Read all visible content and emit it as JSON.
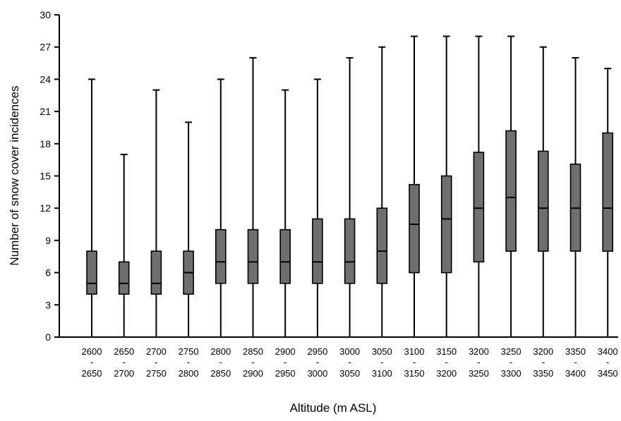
{
  "chart_data": {
    "type": "boxplot",
    "title": "",
    "xlabel": "Altitude (m ASL)",
    "ylabel": "Number of snow cover incidences",
    "ylim": [
      0,
      30
    ],
    "yticks": [
      "0",
      "3",
      "6",
      "9",
      "12",
      "15",
      "18",
      "21",
      "24",
      "27",
      "30"
    ],
    "grid": false,
    "categories": [
      {
        "top": "2600",
        "dash": "-",
        "bottom": "2650"
      },
      {
        "top": "2650",
        "dash": "-",
        "bottom": "2700"
      },
      {
        "top": "2700",
        "dash": "-",
        "bottom": "2750"
      },
      {
        "top": "2750",
        "dash": "-",
        "bottom": "2800"
      },
      {
        "top": "2800",
        "dash": "-",
        "bottom": "2850"
      },
      {
        "top": "2850",
        "dash": "-",
        "bottom": "2900"
      },
      {
        "top": "2900",
        "dash": "-",
        "bottom": "2950"
      },
      {
        "top": "2950",
        "dash": "-",
        "bottom": "3000"
      },
      {
        "top": "3000",
        "dash": "-",
        "bottom": "3050"
      },
      {
        "top": "3050",
        "dash": "-",
        "bottom": "3100"
      },
      {
        "top": "3100",
        "dash": "-",
        "bottom": "3150"
      },
      {
        "top": "3150",
        "dash": "-",
        "bottom": "3200"
      },
      {
        "top": "3200",
        "dash": "-",
        "bottom": "3250"
      },
      {
        "top": "3250",
        "dash": "-",
        "bottom": "3300"
      },
      {
        "top": "3200",
        "dash": "-",
        "bottom": "3350"
      },
      {
        "top": "3350",
        "dash": "-",
        "bottom": "3400"
      },
      {
        "top": "3400",
        "dash": "-",
        "bottom": "3450"
      }
    ],
    "boxes": [
      {
        "min": 0,
        "q1": 4,
        "median": 5,
        "q3": 8,
        "max": 24
      },
      {
        "min": 0,
        "q1": 4,
        "median": 5,
        "q3": 7,
        "max": 17
      },
      {
        "min": 0,
        "q1": 4,
        "median": 5,
        "q3": 8,
        "max": 23
      },
      {
        "min": 0,
        "q1": 4,
        "median": 6,
        "q3": 8,
        "max": 20
      },
      {
        "min": 0,
        "q1": 5,
        "median": 7,
        "q3": 10,
        "max": 24
      },
      {
        "min": 0,
        "q1": 5,
        "median": 7,
        "q3": 10,
        "max": 26
      },
      {
        "min": 0,
        "q1": 5,
        "median": 7,
        "q3": 10,
        "max": 23
      },
      {
        "min": 0,
        "q1": 5,
        "median": 7,
        "q3": 11,
        "max": 24
      },
      {
        "min": 0,
        "q1": 5,
        "median": 7,
        "q3": 11,
        "max": 26
      },
      {
        "min": 0,
        "q1": 5,
        "median": 8,
        "q3": 12,
        "max": 27
      },
      {
        "min": 0,
        "q1": 6,
        "median": 10.5,
        "q3": 14.2,
        "max": 28
      },
      {
        "min": 0,
        "q1": 6,
        "median": 11,
        "q3": 15,
        "max": 28
      },
      {
        "min": 0,
        "q1": 7,
        "median": 12,
        "q3": 17.2,
        "max": 28
      },
      {
        "min": 0,
        "q1": 8,
        "median": 13,
        "q3": 19.2,
        "max": 28
      },
      {
        "min": 0,
        "q1": 8,
        "median": 12,
        "q3": 17.3,
        "max": 27
      },
      {
        "min": 0,
        "q1": 8,
        "median": 12,
        "q3": 16.1,
        "max": 26
      },
      {
        "min": 0,
        "q1": 8,
        "median": 12,
        "q3": 19,
        "max": 25
      }
    ],
    "colors": {
      "box_fill": "#6f6f6f",
      "line": "#000000"
    }
  }
}
